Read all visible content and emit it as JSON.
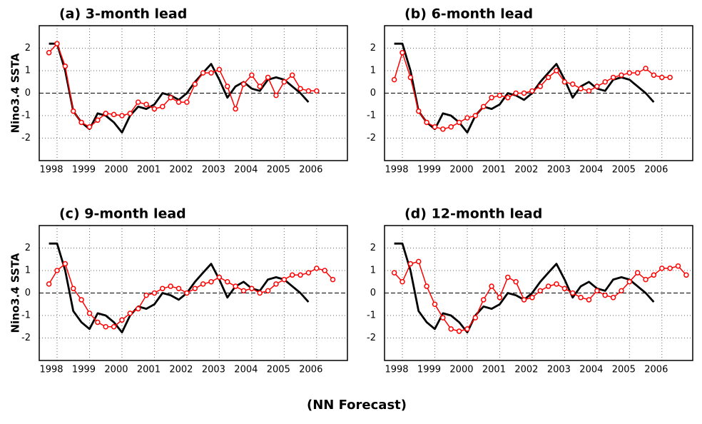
{
  "caption": "(NN Forecast)",
  "chart_data": [
    {
      "type": "line",
      "title": "(a) 3-month lead",
      "ylabel": "Nino3.4 SSTA",
      "x": [
        1997.75,
        1998,
        1998.25,
        1998.5,
        1998.75,
        1999,
        1999.25,
        1999.5,
        1999.75,
        2000,
        2000.25,
        2000.5,
        2000.75,
        2001,
        2001.25,
        2001.5,
        2001.75,
        2002,
        2002.25,
        2002.5,
        2002.75,
        2003,
        2003.25,
        2003.5,
        2003.75,
        2004,
        2004.25,
        2004.5,
        2004.75,
        2005,
        2005.25,
        2005.5,
        2005.75,
        2006
      ],
      "series": [
        {
          "color": "#000000",
          "values": [
            2.2,
            2.2,
            1.0,
            -0.8,
            -1.3,
            -1.6,
            -0.9,
            -1.0,
            -1.3,
            -1.75,
            -1.0,
            -0.6,
            -0.7,
            -0.5,
            0.0,
            -0.1,
            -0.3,
            0.0,
            0.5,
            0.9,
            1.3,
            0.6,
            -0.2,
            0.3,
            0.5,
            0.2,
            0.1,
            0.6,
            0.7,
            0.6,
            0.3,
            0.0,
            -0.4,
            null
          ]
        },
        {
          "color": "#ff0000",
          "values": [
            1.8,
            2.2,
            1.2,
            -0.8,
            -1.3,
            -1.5,
            -1.2,
            -0.9,
            -0.95,
            -1.0,
            -0.9,
            -0.4,
            -0.5,
            -0.7,
            -0.6,
            -0.2,
            -0.4,
            -0.4,
            0.4,
            0.9,
            0.9,
            1.05,
            0.3,
            -0.7,
            0.4,
            0.8,
            0.3,
            0.7,
            -0.1,
            0.5,
            0.8,
            0.2,
            0.1,
            0.1
          ]
        }
      ],
      "xlim": [
        1997.45,
        2006.95
      ],
      "xticks": [
        1998,
        1999,
        2000,
        2001,
        2002,
        2003,
        2004,
        2005,
        2006
      ],
      "ylim": [
        -3,
        3
      ],
      "yticks": [
        -2,
        -1,
        0,
        1,
        2
      ],
      "ytick_labels_shown": [
        -2,
        -1,
        0,
        1,
        2
      ],
      "grid": true
    },
    {
      "type": "line",
      "title": "(b) 6-month lead",
      "x": [
        1997.75,
        1998,
        1998.25,
        1998.5,
        1998.75,
        1999,
        1999.25,
        1999.5,
        1999.75,
        2000,
        2000.25,
        2000.5,
        2000.75,
        2001,
        2001.25,
        2001.5,
        2001.75,
        2002,
        2002.25,
        2002.5,
        2002.75,
        2003,
        2003.25,
        2003.5,
        2003.75,
        2004,
        2004.25,
        2004.5,
        2004.75,
        2005,
        2005.25,
        2005.5,
        2005.75,
        2006,
        2006.25
      ],
      "series": [
        {
          "color": "#000000",
          "values": [
            2.2,
            2.2,
            1.0,
            -0.8,
            -1.3,
            -1.6,
            -0.9,
            -1.0,
            -1.3,
            -1.75,
            -1.0,
            -0.6,
            -0.7,
            -0.5,
            0.0,
            -0.1,
            -0.3,
            0.0,
            0.5,
            0.9,
            1.3,
            0.6,
            -0.2,
            0.3,
            0.5,
            0.2,
            0.1,
            0.6,
            0.7,
            0.6,
            0.3,
            0.0,
            -0.4,
            null,
            null
          ]
        },
        {
          "color": "#ff0000",
          "values": [
            0.6,
            1.8,
            0.7,
            -0.8,
            -1.3,
            -1.5,
            -1.6,
            -1.5,
            -1.3,
            -1.1,
            -1.0,
            -0.6,
            -0.2,
            -0.1,
            -0.2,
            0.0,
            0.0,
            0.1,
            0.3,
            0.7,
            1.0,
            0.5,
            0.4,
            0.2,
            0.1,
            0.3,
            0.5,
            0.7,
            0.8,
            0.9,
            0.9,
            1.1,
            0.8,
            0.7,
            0.7
          ]
        }
      ],
      "xlim": [
        1997.45,
        2006.95
      ],
      "xticks": [
        1998,
        1999,
        2000,
        2001,
        2002,
        2003,
        2004,
        2005,
        2006
      ],
      "ylim": [
        -3,
        3
      ],
      "yticks": [
        -2,
        -1,
        0,
        1,
        2
      ],
      "grid": true
    },
    {
      "type": "line",
      "title": "(c) 9-month lead",
      "ylabel": "Nino3.4 SSTA",
      "x": [
        1997.75,
        1998,
        1998.25,
        1998.5,
        1998.75,
        1999,
        1999.25,
        1999.5,
        1999.75,
        2000,
        2000.25,
        2000.5,
        2000.75,
        2001,
        2001.25,
        2001.5,
        2001.75,
        2002,
        2002.25,
        2002.5,
        2002.75,
        2003,
        2003.25,
        2003.5,
        2003.75,
        2004,
        2004.25,
        2004.5,
        2004.75,
        2005,
        2005.25,
        2005.5,
        2005.75,
        2006,
        2006.25,
        2006.5
      ],
      "series": [
        {
          "color": "#000000",
          "values": [
            2.2,
            2.2,
            1.0,
            -0.8,
            -1.3,
            -1.6,
            -0.9,
            -1.0,
            -1.3,
            -1.75,
            -1.0,
            -0.6,
            -0.7,
            -0.5,
            0.0,
            -0.1,
            -0.3,
            0.0,
            0.5,
            0.9,
            1.3,
            0.6,
            -0.2,
            0.3,
            0.5,
            0.2,
            0.1,
            0.6,
            0.7,
            0.6,
            0.3,
            0.0,
            -0.4,
            null,
            null,
            null
          ]
        },
        {
          "color": "#ff0000",
          "values": [
            0.4,
            1.0,
            1.3,
            0.2,
            -0.3,
            -0.9,
            -1.3,
            -1.5,
            -1.5,
            -1.2,
            -0.9,
            -0.7,
            -0.1,
            0.0,
            0.2,
            0.3,
            0.2,
            0.0,
            0.2,
            0.4,
            0.5,
            0.7,
            0.5,
            0.3,
            0.1,
            0.2,
            0.0,
            0.1,
            0.4,
            0.6,
            0.8,
            0.8,
            0.9,
            1.1,
            1.0,
            0.6
          ]
        }
      ],
      "xlim": [
        1997.45,
        2006.95
      ],
      "xticks": [
        1998,
        1999,
        2000,
        2001,
        2002,
        2003,
        2004,
        2005,
        2006
      ],
      "ylim": [
        -3,
        3
      ],
      "yticks": [
        -2,
        -1,
        0,
        1,
        2
      ],
      "grid": true
    },
    {
      "type": "line",
      "title": "(d) 12-month lead",
      "x": [
        1997.75,
        1998,
        1998.25,
        1998.5,
        1998.75,
        1999,
        1999.25,
        1999.5,
        1999.75,
        2000,
        2000.25,
        2000.5,
        2000.75,
        2001,
        2001.25,
        2001.5,
        2001.75,
        2002,
        2002.25,
        2002.5,
        2002.75,
        2003,
        2003.25,
        2003.5,
        2003.75,
        2004,
        2004.25,
        2004.5,
        2004.75,
        2005,
        2005.25,
        2005.5,
        2005.75,
        2006,
        2006.25,
        2006.5,
        2006.75
      ],
      "series": [
        {
          "color": "#000000",
          "values": [
            2.2,
            2.2,
            1.0,
            -0.8,
            -1.3,
            -1.6,
            -0.9,
            -1.0,
            -1.3,
            -1.75,
            -1.0,
            -0.6,
            -0.7,
            -0.5,
            0.0,
            -0.1,
            -0.3,
            0.0,
            0.5,
            0.9,
            1.3,
            0.6,
            -0.2,
            0.3,
            0.5,
            0.2,
            0.1,
            0.6,
            0.7,
            0.6,
            0.3,
            0.0,
            -0.4,
            null,
            null,
            null,
            null
          ]
        },
        {
          "color": "#ff0000",
          "values": [
            0.9,
            0.5,
            1.3,
            1.4,
            0.3,
            -0.5,
            -1.1,
            -1.6,
            -1.7,
            -1.6,
            -1.1,
            -0.3,
            0.3,
            -0.2,
            0.7,
            0.5,
            -0.3,
            -0.2,
            0.1,
            0.3,
            0.4,
            0.2,
            0.0,
            -0.2,
            -0.3,
            0.1,
            -0.1,
            -0.2,
            0.1,
            0.5,
            0.9,
            0.6,
            0.8,
            1.1,
            1.1,
            1.2,
            0.8
          ]
        }
      ],
      "xlim": [
        1997.45,
        2006.95
      ],
      "xticks": [
        1998,
        1999,
        2000,
        2001,
        2002,
        2003,
        2004,
        2005,
        2006
      ],
      "ylim": [
        -3,
        3
      ],
      "yticks": [
        -2,
        -1,
        0,
        1,
        2
      ],
      "grid": true
    }
  ]
}
